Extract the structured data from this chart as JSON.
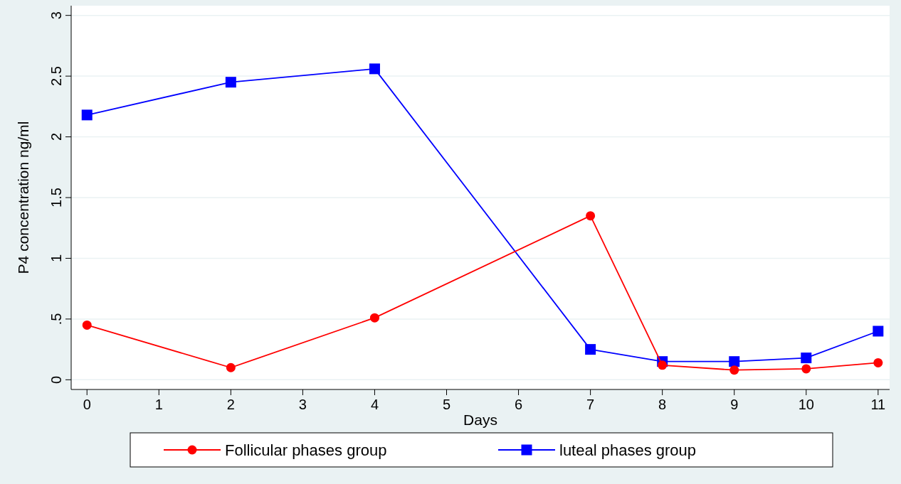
{
  "chart_data": {
    "type": "line",
    "xlabel": "Days",
    "ylabel": "P4 concentration ng/ml",
    "x": [
      0,
      2,
      4,
      7,
      8,
      9,
      10,
      11
    ],
    "series": [
      {
        "name": "Follicular phases group",
        "color": "#ff0000",
        "marker": "circle",
        "values": [
          0.45,
          0.1,
          0.51,
          1.35,
          0.12,
          0.08,
          0.09,
          0.14
        ]
      },
      {
        "name": "luteal phases group",
        "color": "#0000ff",
        "marker": "square",
        "values": [
          2.18,
          2.45,
          2.56,
          0.25,
          0.15,
          0.15,
          0.18,
          0.4
        ]
      }
    ],
    "xlim": [
      -0.22,
      11.16
    ],
    "xticks": [
      0,
      1,
      2,
      3,
      4,
      5,
      6,
      7,
      8,
      9,
      10,
      11
    ],
    "ylim": [
      -0.08,
      3.08
    ],
    "yticks": [
      0,
      {
        "value": 0.5,
        "label": ".5"
      },
      1,
      1.5,
      2,
      2.5,
      3
    ],
    "grid": "y",
    "legend": "bottom",
    "line_style": "solid"
  }
}
